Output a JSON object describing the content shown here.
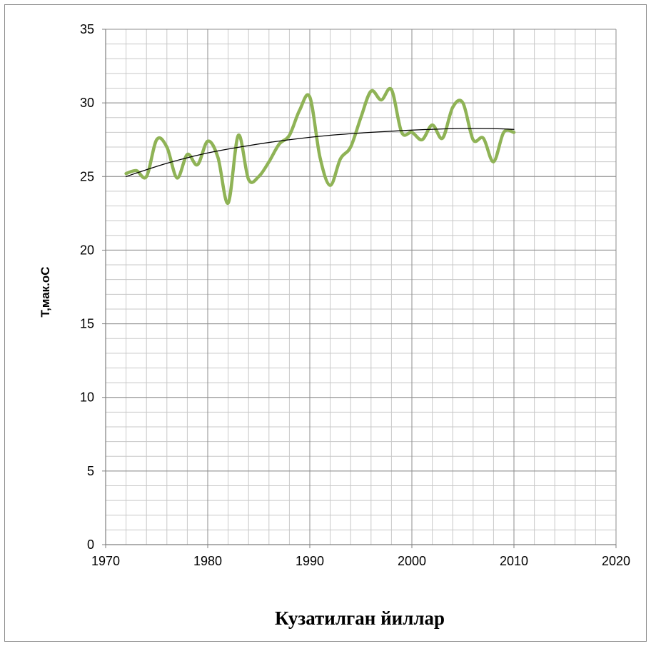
{
  "chart_data": {
    "type": "line",
    "title": "",
    "xlabel": "Кузатилган йиллар",
    "ylabel": "Т,мак.оС",
    "xlim": [
      1970,
      2020
    ],
    "ylim": [
      0,
      35
    ],
    "x_ticks": [
      "1970",
      "1980",
      "1990",
      "2000",
      "2010",
      "2020"
    ],
    "y_ticks": [
      "0",
      "5",
      "10",
      "15",
      "20",
      "25",
      "30",
      "35"
    ],
    "x_major_step": 10,
    "x_minor_step": 2,
    "y_major_step": 5,
    "y_minor_step": 1,
    "grid": true,
    "series": [
      {
        "color": "#8fb356",
        "smooth": true,
        "x": [
          1972,
          1973,
          1974,
          1975,
          1976,
          1977,
          1978,
          1979,
          1980,
          1981,
          1982,
          1983,
          1984,
          1985,
          1986,
          1987,
          1988,
          1989,
          1990,
          1991,
          1992,
          1993,
          1994,
          1995,
          1996,
          1997,
          1998,
          1999,
          2000,
          2001,
          2002,
          2003,
          2004,
          2005,
          2006,
          2007,
          2008,
          2009,
          2010
        ],
        "y": [
          25.2,
          25.4,
          25.0,
          27.5,
          27.0,
          24.9,
          26.5,
          25.8,
          27.4,
          26.3,
          23.2,
          27.8,
          24.8,
          25.0,
          26.0,
          27.2,
          27.8,
          29.5,
          30.4,
          26.3,
          24.4,
          26.2,
          27.0,
          29.0,
          30.8,
          30.2,
          30.9,
          28.0,
          28.0,
          27.5,
          28.5,
          27.6,
          29.7,
          30.0,
          27.5,
          27.6,
          26.0,
          28.0,
          28.0
        ]
      },
      {
        "color": "#000000",
        "smooth": true,
        "trend": true,
        "x": [
          1972,
          1976,
          1980,
          1984,
          1988,
          1992,
          1996,
          2000,
          2004,
          2008,
          2010
        ],
        "y": [
          25.0,
          25.9,
          26.6,
          27.1,
          27.5,
          27.8,
          28.0,
          28.15,
          28.25,
          28.25,
          28.2
        ]
      }
    ]
  }
}
